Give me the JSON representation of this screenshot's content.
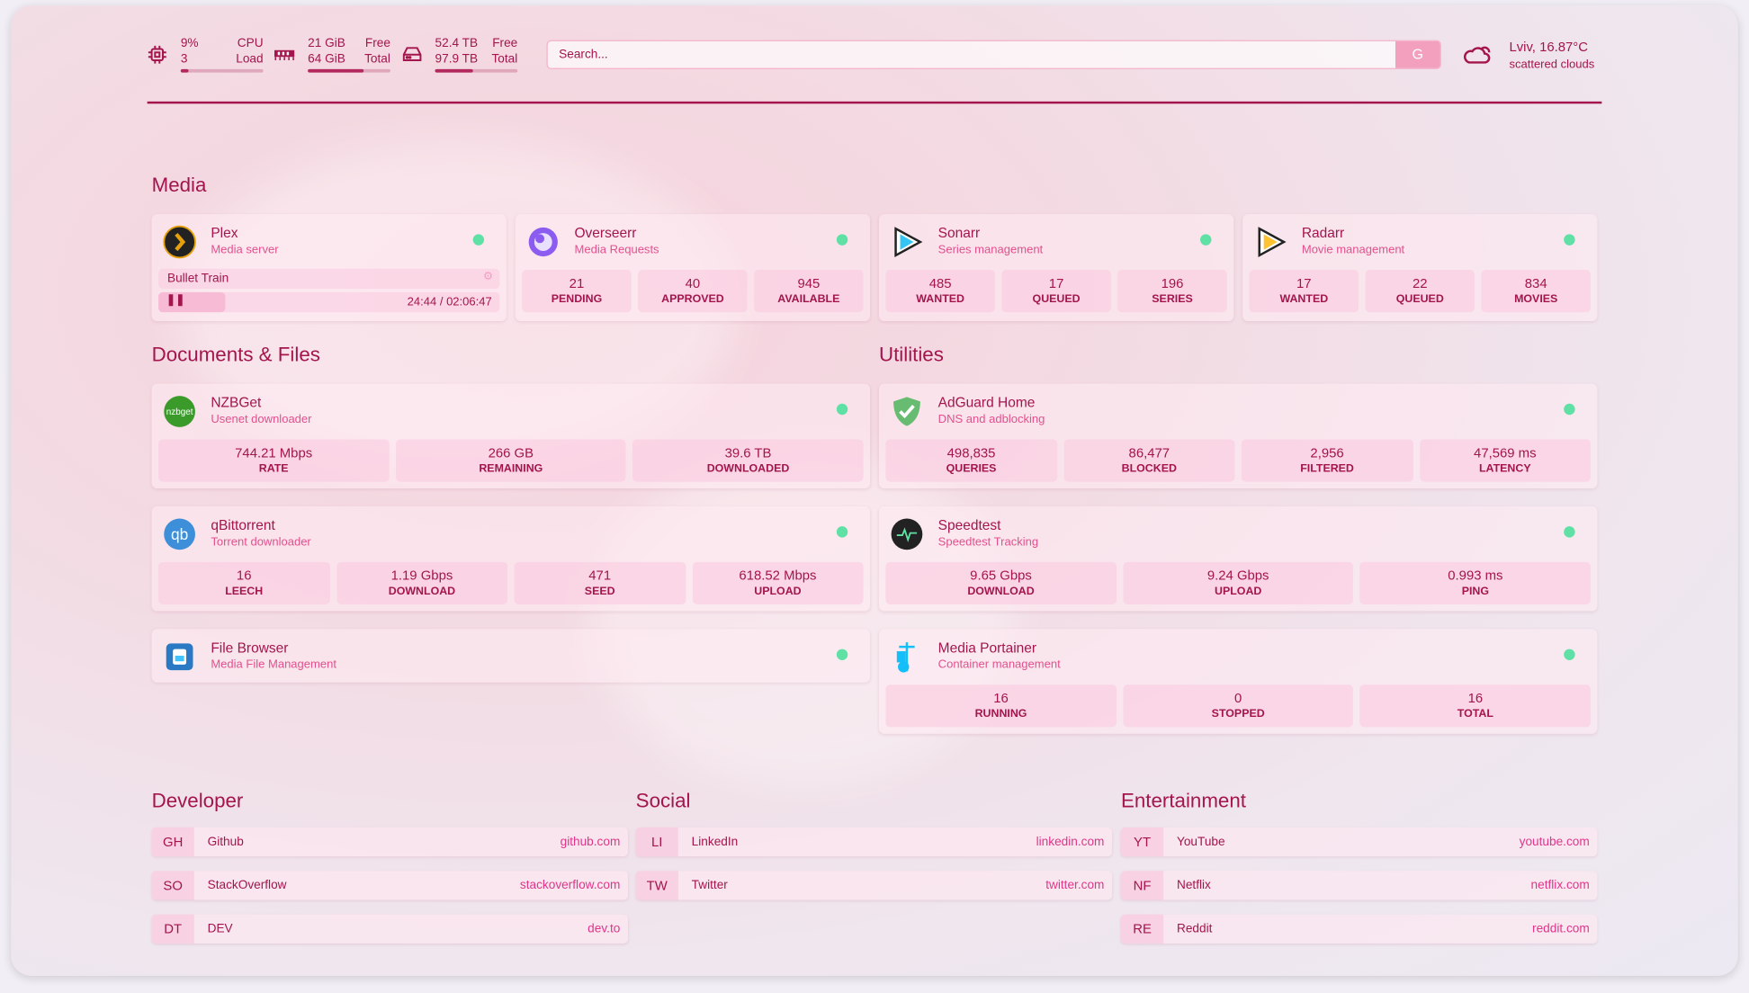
{
  "header": {
    "cpu": {
      "icon": "cpu-chip-icon",
      "value": "9%",
      "sub": "3",
      "label1": "CPU",
      "label2": "Load",
      "percent": 9
    },
    "memory": {
      "icon": "memory-icon",
      "value": "21 GiB",
      "sub": "64 GiB",
      "label1": "Free",
      "label2": "Total",
      "percent": 67
    },
    "disk": {
      "icon": "hard-drive-icon",
      "value": "52.4 TB",
      "sub": "97.9 TB",
      "label1": "Free",
      "label2": "Total",
      "percent": 46
    },
    "search": {
      "placeholder": "Search...",
      "button": "G"
    },
    "weather": {
      "icon": "cloud-icon",
      "location": "Lviv, 16.87°C",
      "condition": "scattered clouds"
    }
  },
  "colors": {
    "accent": "#a3154c",
    "subtitle": "#e2508e",
    "status_ok": "#5fe0a5",
    "link": "#e0358a"
  },
  "sections": {
    "media": "Media",
    "docs": "Documents & Files",
    "utilities": "Utilities",
    "developer": "Developer",
    "social": "Social",
    "entertainment": "Entertainment"
  },
  "plex": {
    "name": "Plex",
    "desc": "Media server",
    "icon": "plex-icon",
    "now_playing": "Bullet Train",
    "time": "24:44 / 02:06:47",
    "progress": 19.5
  },
  "media_cards": [
    {
      "name": "Overseerr",
      "desc": "Media Requests",
      "icon": "overseerr-icon",
      "stats": [
        {
          "v": "21",
          "l": "PENDING"
        },
        {
          "v": "40",
          "l": "APPROVED"
        },
        {
          "v": "945",
          "l": "AVAILABLE"
        }
      ]
    },
    {
      "name": "Sonarr",
      "desc": "Series management",
      "icon": "sonarr-icon",
      "stats": [
        {
          "v": "485",
          "l": "WANTED"
        },
        {
          "v": "17",
          "l": "QUEUED"
        },
        {
          "v": "196",
          "l": "SERIES"
        }
      ]
    },
    {
      "name": "Radarr",
      "desc": "Movie management",
      "icon": "radarr-icon",
      "stats": [
        {
          "v": "17",
          "l": "WANTED"
        },
        {
          "v": "22",
          "l": "QUEUED"
        },
        {
          "v": "834",
          "l": "MOVIES"
        }
      ]
    }
  ],
  "docs_cards": [
    {
      "name": "NZBGet",
      "desc": "Usenet downloader",
      "icon": "nzbget-icon",
      "icon_text": "nzbget",
      "stats": [
        {
          "v": "744.21 Mbps",
          "l": "RATE"
        },
        {
          "v": "266 GB",
          "l": "REMAINING"
        },
        {
          "v": "39.6 TB",
          "l": "DOWNLOADED"
        }
      ]
    },
    {
      "name": "qBittorrent",
      "desc": "Torrent downloader",
      "icon": "qbittorrent-icon",
      "icon_text": "qb",
      "stats": [
        {
          "v": "16",
          "l": "LEECH"
        },
        {
          "v": "1.19 Gbps",
          "l": "DOWNLOAD"
        },
        {
          "v": "471",
          "l": "SEED"
        },
        {
          "v": "618.52 Mbps",
          "l": "UPLOAD"
        }
      ]
    },
    {
      "name": "File Browser",
      "desc": "Media File Management",
      "icon": "file-browser-icon",
      "stats": []
    }
  ],
  "util_cards": [
    {
      "name": "AdGuard Home",
      "desc": "DNS and adblocking",
      "icon": "adguard-shield-icon",
      "stats": [
        {
          "v": "498,835",
          "l": "QUERIES"
        },
        {
          "v": "86,477",
          "l": "BLOCKED"
        },
        {
          "v": "2,956",
          "l": "FILTERED"
        },
        {
          "v": "47,569 ms",
          "l": "LATENCY"
        }
      ]
    },
    {
      "name": "Speedtest",
      "desc": "Speedtest Tracking",
      "icon": "speedtest-icon",
      "stats": [
        {
          "v": "9.65 Gbps",
          "l": "DOWNLOAD"
        },
        {
          "v": "9.24 Gbps",
          "l": "UPLOAD"
        },
        {
          "v": "0.993 ms",
          "l": "PING"
        }
      ]
    },
    {
      "name": "Media Portainer",
      "desc": "Container management",
      "icon": "portainer-icon",
      "stats": [
        {
          "v": "16",
          "l": "RUNNING"
        },
        {
          "v": "0",
          "l": "STOPPED"
        },
        {
          "v": "16",
          "l": "TOTAL"
        }
      ]
    }
  ],
  "bookmarks": {
    "developer": [
      {
        "abbr": "GH",
        "name": "Github",
        "url": "github.com"
      },
      {
        "abbr": "SO",
        "name": "StackOverflow",
        "url": "stackoverflow.com"
      },
      {
        "abbr": "DT",
        "name": "DEV",
        "url": "dev.to"
      }
    ],
    "social": [
      {
        "abbr": "LI",
        "name": "LinkedIn",
        "url": "linkedin.com"
      },
      {
        "abbr": "TW",
        "name": "Twitter",
        "url": "twitter.com"
      }
    ],
    "entertainment": [
      {
        "abbr": "YT",
        "name": "YouTube",
        "url": "youtube.com"
      },
      {
        "abbr": "NF",
        "name": "Netflix",
        "url": "netflix.com"
      },
      {
        "abbr": "RE",
        "name": "Reddit",
        "url": "reddit.com"
      }
    ]
  }
}
